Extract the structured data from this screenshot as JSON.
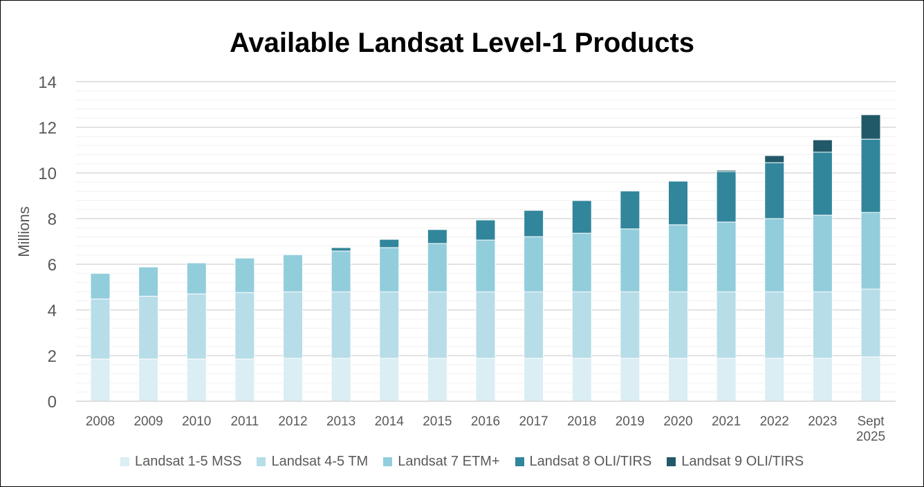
{
  "chart_data": {
    "type": "bar",
    "stacked": true,
    "title": "Available Landsat Level-1 Products",
    "xlabel": "",
    "ylabel": "Millions",
    "ylim": [
      0,
      14
    ],
    "yticks": [
      "0",
      "2",
      "4",
      "6",
      "8",
      "10",
      "12",
      "14"
    ],
    "grid": true,
    "legend_position": "bottom",
    "categories": [
      "2008",
      "2009",
      "2010",
      "2011",
      "2012",
      "2013",
      "2014",
      "2015",
      "2016",
      "2017",
      "2018",
      "2019",
      "2020",
      "2021",
      "2022",
      "2023",
      "Sept 2025"
    ],
    "series": [
      {
        "name": "Landsat 1-5 MSS",
        "color": "#daeef3",
        "values": [
          1.85,
          1.85,
          1.85,
          1.85,
          1.88,
          1.88,
          1.88,
          1.88,
          1.88,
          1.88,
          1.88,
          1.88,
          1.88,
          1.88,
          1.88,
          1.88,
          1.94
        ]
      },
      {
        "name": "Landsat 4-5 TM",
        "color": "#b7dde8",
        "values": [
          2.63,
          2.75,
          2.85,
          2.91,
          2.91,
          2.91,
          2.91,
          2.91,
          2.91,
          2.91,
          2.91,
          2.91,
          2.91,
          2.91,
          2.91,
          2.91,
          2.97
        ]
      },
      {
        "name": "Landsat 7 ETM+",
        "color": "#92cddc",
        "values": [
          1.12,
          1.28,
          1.36,
          1.51,
          1.63,
          1.79,
          1.94,
          2.12,
          2.27,
          2.42,
          2.57,
          2.76,
          2.94,
          3.06,
          3.21,
          3.36,
          3.36
        ]
      },
      {
        "name": "Landsat 8 OLI/TIRS",
        "color": "#31869b",
        "values": [
          0,
          0,
          0,
          0,
          0,
          0.15,
          0.36,
          0.61,
          0.88,
          1.15,
          1.43,
          1.66,
          1.91,
          2.21,
          2.45,
          2.76,
          3.21
        ]
      },
      {
        "name": "Landsat 9 OLI/TIRS",
        "color": "#215968",
        "values": [
          0,
          0,
          0,
          0,
          0,
          0,
          0,
          0,
          0,
          0,
          0,
          0,
          0,
          0.06,
          0.31,
          0.54,
          1.07
        ]
      }
    ]
  }
}
